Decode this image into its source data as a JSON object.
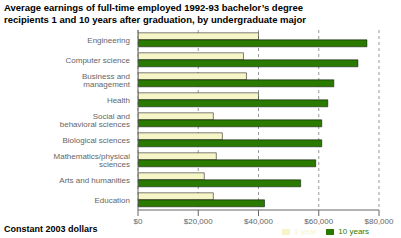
{
  "chart_data": {
    "type": "bar",
    "orientation": "horizontal",
    "title": "Average earnings of full-time employed 1992-93 bachelor’s degree\nrecipients 1 and 10 years after graduation, by undergraduate major",
    "x_label": "Constant 2003 dollars",
    "categories": [
      "Engineering",
      "Computer science",
      "Business and management",
      "Health",
      "Social and behavioral sciences",
      "Biological sciences",
      "Mathematics/physical sciences",
      "Arts and humanities",
      "Education"
    ],
    "series": [
      {
        "name": "1 year",
        "color": "#f5f5c8",
        "values": [
          40000,
          35000,
          36000,
          40000,
          25000,
          28000,
          26000,
          22000,
          25000
        ]
      },
      {
        "name": "10 years",
        "color": "#2a7a00",
        "values": [
          76000,
          73000,
          65000,
          63000,
          61000,
          61000,
          59000,
          54000,
          42000
        ]
      }
    ],
    "xlim": [
      0,
      80000
    ],
    "xticks": [
      {
        "value": 0,
        "label": "$0"
      },
      {
        "value": 20000,
        "label": "$20,000"
      },
      {
        "value": 40000,
        "label": "$40,000"
      },
      {
        "value": 60000,
        "label": "$60,000"
      },
      {
        "value": 80000,
        "label": "$80,000"
      }
    ],
    "grid": true,
    "legend": "lower right"
  }
}
